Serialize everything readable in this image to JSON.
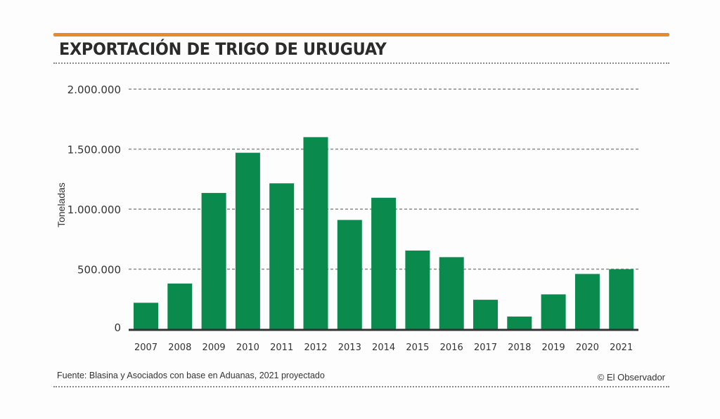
{
  "header": {
    "title": "EXPORTACIÓN DE TRIGO DE URUGUAY"
  },
  "footer": {
    "source": "Fuente: Blasina y Asociados con base en Aduanas, 2021 proyectado",
    "credit": "© El Observador"
  },
  "colors": {
    "bar": "#0b8a4e",
    "accent_rule": "#e68a30",
    "grid": "#8a8a8a",
    "axis": "#333333"
  },
  "chart_data": {
    "type": "bar",
    "title": "EXPORTACIÓN DE TRIGO DE URUGUAY",
    "xlabel": "",
    "ylabel": "Toneladas",
    "ylim": [
      0,
      2000000
    ],
    "yticks": [
      0,
      500000,
      1000000,
      1500000,
      2000000
    ],
    "ytick_labels": [
      "0",
      "500.000",
      "1.000.000",
      "1.500.000",
      "2.000.000"
    ],
    "grid": true,
    "categories": [
      "2007",
      "2008",
      "2009",
      "2010",
      "2011",
      "2012",
      "2013",
      "2014",
      "2015",
      "2016",
      "2017",
      "2018",
      "2019",
      "2020",
      "2021"
    ],
    "values": [
      220000,
      380000,
      1135000,
      1470000,
      1215000,
      1600000,
      910000,
      1095000,
      655000,
      600000,
      245000,
      105000,
      290000,
      460000,
      500000
    ]
  }
}
